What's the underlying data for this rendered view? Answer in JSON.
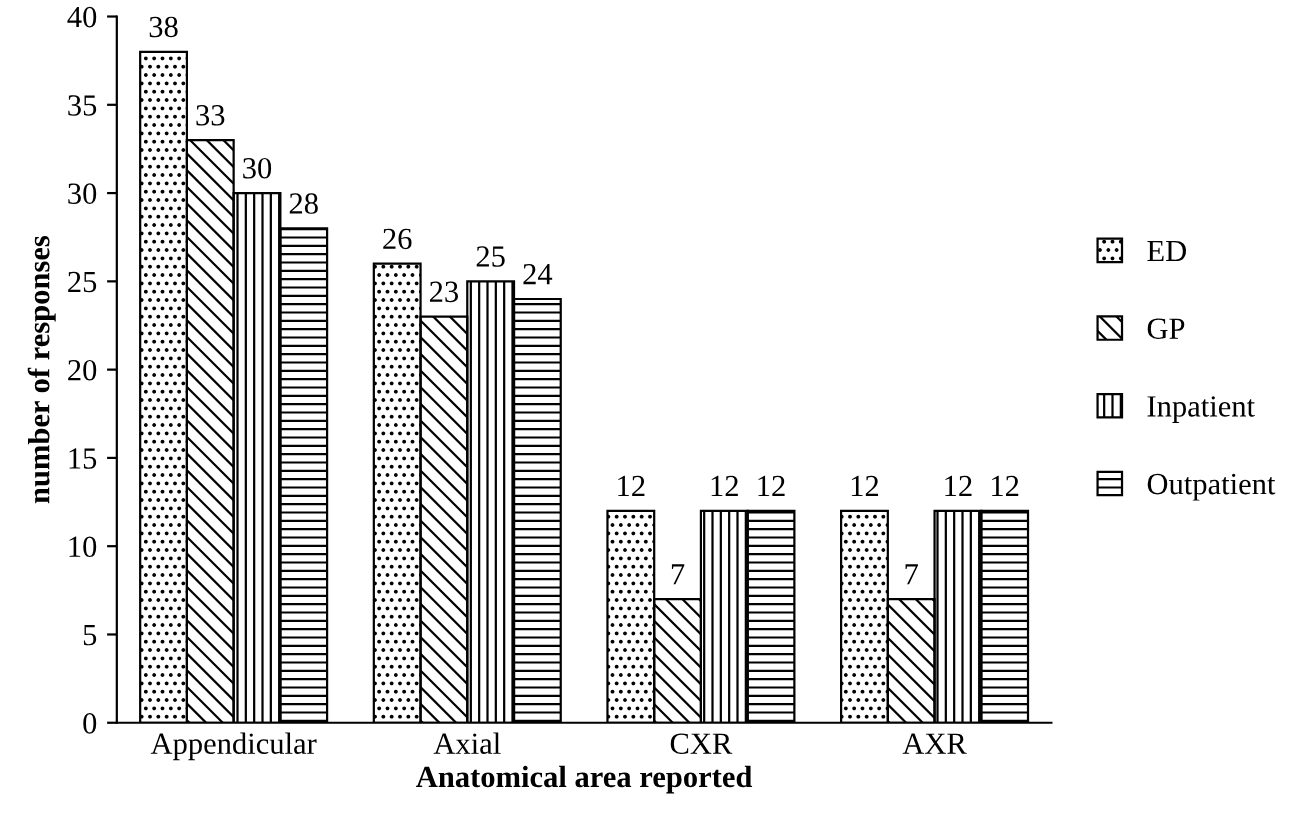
{
  "chart_data": {
    "type": "bar",
    "xlabel": "Anatomical area reported",
    "ylabel": "number of responses",
    "categories": [
      "Appendicular",
      "Axial",
      "CXR",
      "AXR"
    ],
    "series": [
      {
        "name": "ED",
        "color": "#000000",
        "values": [
          38,
          26,
          12,
          12
        ]
      },
      {
        "name": "GP",
        "color": "#000000",
        "values": [
          33,
          23,
          7,
          7
        ]
      },
      {
        "name": "Inpatient",
        "color": "#000000",
        "values": [
          30,
          25,
          12,
          12
        ]
      },
      {
        "name": "Outpatient",
        "color": "#000000",
        "values": [
          28,
          24,
          12,
          12
        ]
      }
    ],
    "ylim": [
      0,
      40
    ],
    "yticks": [
      0,
      5,
      10,
      15,
      20,
      25,
      30,
      35,
      40
    ],
    "grid": false,
    "legend": "right",
    "data_labels": true
  }
}
